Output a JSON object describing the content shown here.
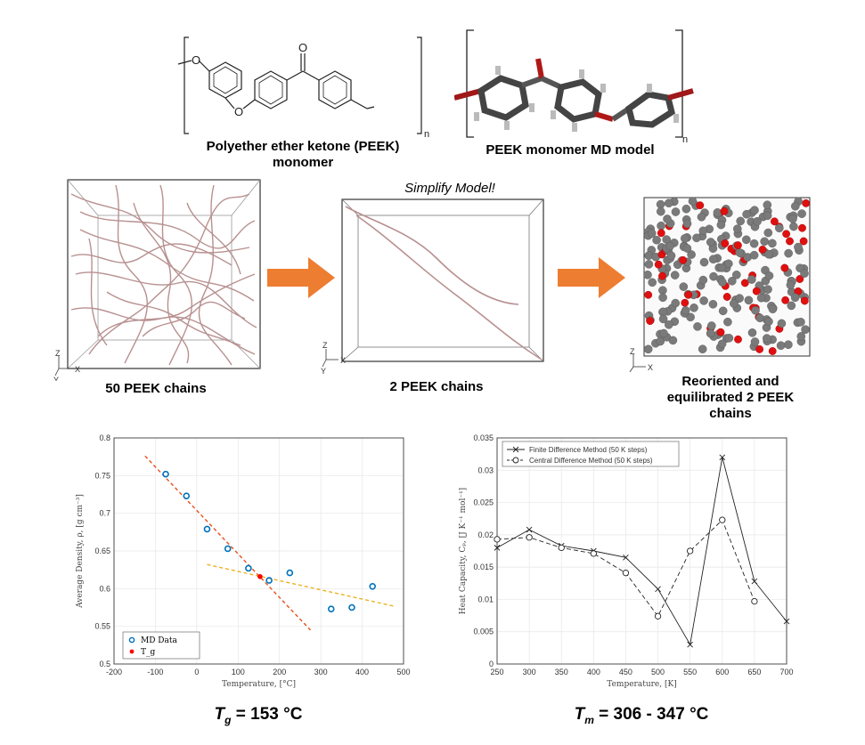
{
  "top": {
    "peek_label_line1": "Polyether ether ketone (PEEK)",
    "peek_label_line2": "monomer",
    "md_label": "PEEK monomer MD model",
    "repeat_n_left": "n",
    "repeat_n_right": "n",
    "atom_O": "O"
  },
  "middle": {
    "box1_caption": "50 PEEK chains",
    "box2_title": "Simplify Model!",
    "box2_caption": "2 PEEK chains",
    "box3_caption_line1": "Reoriented and",
    "box3_caption_line2": "equilibrated 2 PEEK",
    "box3_caption_line3": "chains",
    "axis_z": "Z",
    "axis_x": "X",
    "axis_y": "Y",
    "arrow_color": "#ED7D31"
  },
  "chart_data": [
    {
      "type": "scatter",
      "xlabel": "Temperature, [°C]",
      "ylabel": "Average Density, ρ, [g cm⁻³]",
      "xlim": [
        -200,
        500
      ],
      "ylim": [
        0.5,
        0.8
      ],
      "xticks": [
        "-200",
        "-100",
        "0",
        "100",
        "200",
        "300",
        "400",
        "500"
      ],
      "yticks": [
        "0.5",
        "0.55",
        "0.6",
        "0.65",
        "0.7",
        "0.75",
        "0.8"
      ],
      "grid": true,
      "legend_position": "bottom-left",
      "series": [
        {
          "name": "MD Data",
          "color": "#0072BD",
          "x": [
            -75,
            -25,
            25,
            75,
            125,
            175,
            225,
            325,
            375,
            425
          ],
          "y": [
            0.752,
            0.723,
            0.679,
            0.653,
            0.627,
            0.611,
            0.621,
            0.573,
            0.575,
            0.603
          ]
        },
        {
          "name": "T_g",
          "color": "#FF0000",
          "x": [
            153
          ],
          "y": [
            0.616
          ]
        }
      ],
      "fit_lines": [
        {
          "color": "#E8501E",
          "x": [
            -125,
            275
          ],
          "y": [
            0.776,
            0.545
          ]
        },
        {
          "color": "#EDB120",
          "x": [
            25,
            475
          ],
          "y": [
            0.632,
            0.577
          ]
        }
      ],
      "formula_main": "T",
      "formula_sub": "g",
      "formula_rest": " = 153 °C"
    },
    {
      "type": "line",
      "xlabel": "Temperature, [K]",
      "ylabel": "Heat Capacity, Cₚ, [J K⁻¹ mol⁻¹]",
      "xlim": [
        250,
        700
      ],
      "ylim": [
        0,
        0.035
      ],
      "xticks": [
        "250",
        "300",
        "350",
        "400",
        "450",
        "500",
        "550",
        "600",
        "650",
        "700"
      ],
      "yticks": [
        "0",
        "0.005",
        "0.01",
        "0.015",
        "0.02",
        "0.025",
        "0.03",
        "0.035"
      ],
      "grid": true,
      "legend_position": "top-left",
      "series": [
        {
          "name": "Finite Difference Method (50 K steps)",
          "marker": "x",
          "dash": "solid",
          "x": [
            250,
            300,
            350,
            400,
            450,
            500,
            550,
            600,
            650,
            700
          ],
          "y": [
            0.018,
            0.0208,
            0.0183,
            0.0175,
            0.0165,
            0.0116,
            0.003,
            0.032,
            0.0128,
            0.0066
          ]
        },
        {
          "name": "Central Difference Method (50 K steps)",
          "marker": "o",
          "dash": "dashed",
          "x": [
            250,
            300,
            350,
            400,
            450,
            500,
            550,
            600,
            650
          ],
          "y": [
            0.0193,
            0.0196,
            0.018,
            0.0171,
            0.0141,
            0.0074,
            0.0175,
            0.0223,
            0.0097
          ]
        }
      ],
      "formula_main": "T",
      "formula_sub": "m",
      "formula_rest": " = 306 - 347 °C"
    }
  ]
}
